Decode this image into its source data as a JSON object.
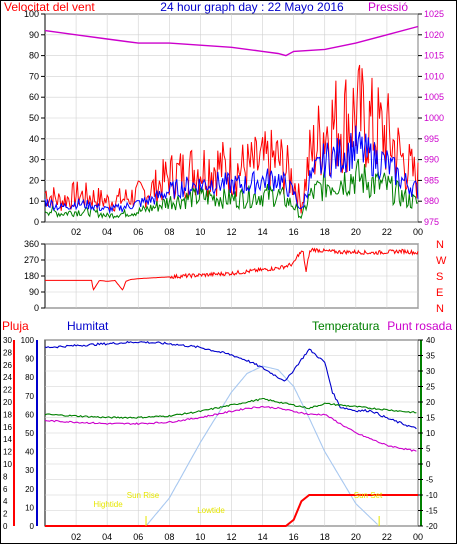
{
  "colors": {
    "wind": "#ff0000",
    "wind_avg": "#0000ff",
    "wind_low": "#008000",
    "pressure": "#cc00cc",
    "rain": "#ff0000",
    "humidity": "#0000cc",
    "temperature": "#008000",
    "dewpoint": "#cc00cc",
    "sun": "#a8c8f0",
    "sun_label": "#e6e600",
    "grid": "#d0d0d0",
    "frame": "#000000"
  },
  "chart_data": [
    {
      "type": "line",
      "title": "24 hour graph day : 22 Mayo 2016",
      "left_label": "Velocitat del vent",
      "right_label": "Pressió",
      "x_ticks": [
        "02",
        "04",
        "06",
        "08",
        "10",
        "12",
        "14",
        "16",
        "18",
        "20",
        "22",
        "00"
      ],
      "xlim": [
        0,
        24
      ],
      "y_left_ticks": [
        0,
        10,
        20,
        30,
        40,
        50,
        60,
        70,
        80,
        90,
        100
      ],
      "ylim_left": [
        0,
        100
      ],
      "y_right_ticks": [
        975,
        980,
        985,
        990,
        995,
        1000,
        1005,
        1010,
        1015,
        1020,
        1025
      ],
      "ylim_right": [
        975,
        1025
      ],
      "series": [
        {
          "axis": "right",
          "x": [
            0,
            2,
            4,
            6,
            8,
            10,
            12,
            14,
            15,
            15.5,
            16,
            18,
            20,
            22,
            24
          ],
          "values": [
            1021,
            1020,
            1019,
            1018,
            1018,
            1017.5,
            1017,
            1016,
            1015.5,
            1015,
            1016,
            1016.5,
            1018,
            1020,
            1022
          ]
        },
        {
          "axis": "left",
          "style": "gust",
          "x": [
            0,
            1,
            2,
            3,
            4,
            5,
            6,
            7,
            8,
            9,
            10,
            11,
            12,
            13,
            14,
            15,
            16,
            16.5,
            17,
            18,
            19,
            20,
            21,
            22,
            23,
            24
          ],
          "values": [
            14,
            10,
            13,
            12,
            10,
            11,
            13,
            16,
            22,
            24,
            26,
            27,
            25,
            26,
            28,
            30,
            20,
            8,
            30,
            45,
            48,
            52,
            46,
            42,
            30,
            20
          ]
        },
        {
          "axis": "left",
          "style": "average",
          "x": [
            0,
            1,
            2,
            3,
            4,
            5,
            6,
            7,
            8,
            9,
            10,
            11,
            12,
            13,
            14,
            15,
            16,
            16.5,
            17,
            18,
            19,
            20,
            21,
            22,
            23,
            24
          ],
          "values": [
            10,
            7,
            9,
            8,
            6,
            7,
            9,
            11,
            15,
            17,
            18,
            19,
            18,
            18,
            20,
            21,
            14,
            5,
            20,
            30,
            32,
            36,
            31,
            28,
            20,
            15
          ]
        },
        {
          "axis": "left",
          "style": "low",
          "x": [
            0,
            1,
            2,
            3,
            4,
            5,
            6,
            7,
            8,
            9,
            10,
            11,
            12,
            13,
            14,
            15,
            16,
            16.5,
            17,
            18,
            19,
            20,
            21,
            22,
            23,
            24
          ],
          "values": [
            6,
            4,
            5,
            5,
            3,
            4,
            5,
            7,
            10,
            11,
            12,
            12,
            11,
            12,
            13,
            13,
            8,
            2,
            12,
            18,
            20,
            22,
            19,
            17,
            12,
            9
          ]
        }
      ]
    },
    {
      "type": "line",
      "x_ticks": [
        "02",
        "04",
        "06",
        "08",
        "10",
        "12",
        "14",
        "16",
        "18",
        "20",
        "22",
        "00"
      ],
      "xlim": [
        0,
        24
      ],
      "y_left_ticks": [
        0,
        90,
        180,
        270,
        360
      ],
      "ylim_left": [
        0,
        360
      ],
      "direction_labels": [
        "N",
        "W",
        "S",
        "E",
        "N"
      ],
      "series": [
        {
          "x": [
            0,
            3,
            3.1,
            3.5,
            4,
            4.5,
            5,
            5.2,
            5.5,
            6,
            7,
            8,
            9,
            10,
            11,
            12,
            13,
            14,
            15,
            15.5,
            16,
            16.3,
            16.6,
            16.8,
            17,
            17.2,
            18,
            19,
            20,
            21,
            22,
            23,
            24
          ],
          "values": [
            155,
            155,
            100,
            155,
            150,
            155,
            100,
            150,
            160,
            165,
            170,
            175,
            180,
            185,
            190,
            195,
            205,
            215,
            225,
            235,
            250,
            300,
            320,
            200,
            310,
            330,
            320,
            315,
            315,
            310,
            315,
            320,
            310
          ]
        }
      ]
    },
    {
      "type": "line",
      "labels": {
        "rain": "Pluja",
        "humidity": "Humitat",
        "temperature": "Temperatura",
        "dewpoint": "Punt rosada"
      },
      "x_ticks": [
        "02",
        "04",
        "06",
        "08",
        "10",
        "12",
        "14",
        "16",
        "18",
        "20",
        "22",
        "00"
      ],
      "xlim": [
        0,
        24
      ],
      "rain_ticks": [
        0,
        2,
        4,
        6,
        8,
        10,
        12,
        14,
        16,
        18,
        20,
        22,
        24,
        26,
        28,
        30
      ],
      "ylim_rain": [
        0,
        30
      ],
      "humidity_ticks": [
        0,
        10,
        20,
        30,
        40,
        50,
        60,
        70,
        80,
        90,
        100
      ],
      "ylim_humidity": [
        0,
        100
      ],
      "temperature_ticks": [
        -20,
        -15,
        -10,
        -5,
        0,
        5,
        10,
        15,
        20,
        25,
        30,
        35,
        40
      ],
      "ylim_temperature": [
        -20,
        40
      ],
      "sun_labels": {
        "sunrise": "Sun Rise",
        "sunset": "Sun Set",
        "lowtide": "Lowtide",
        "hightide": "Hightide"
      },
      "series": [
        {
          "name": "Humitat",
          "axis": "humidity",
          "x": [
            0,
            2,
            4,
            6,
            8,
            10,
            12,
            13,
            14,
            15,
            15.5,
            16,
            17,
            18,
            18.5,
            19,
            20,
            21,
            22,
            23,
            24
          ],
          "values": [
            96,
            97,
            98,
            99,
            98,
            96,
            92,
            89,
            85,
            80,
            78,
            84,
            95,
            88,
            72,
            64,
            62,
            62,
            58,
            55,
            52
          ]
        },
        {
          "name": "Temperatura",
          "axis": "temperature",
          "x": [
            0,
            2,
            4,
            6,
            8,
            10,
            12,
            13,
            14,
            15,
            16,
            17,
            18,
            19,
            20,
            21,
            22,
            23,
            24
          ],
          "values": [
            16,
            15.5,
            15,
            15,
            15.5,
            17,
            19,
            20,
            21,
            20,
            19,
            18,
            19.5,
            19,
            18.5,
            18,
            17.5,
            17,
            16.5
          ]
        },
        {
          "name": "Punt rosada",
          "axis": "temperature",
          "x": [
            0,
            2,
            4,
            6,
            8,
            10,
            12,
            13,
            14,
            15,
            16,
            17,
            18,
            19,
            20,
            21,
            22,
            23,
            24
          ],
          "values": [
            14,
            13.5,
            13,
            13,
            13.5,
            15,
            17,
            18,
            18.5,
            18,
            17,
            16,
            16,
            13,
            10,
            8,
            6,
            5,
            4
          ]
        },
        {
          "name": "Pluja",
          "axis": "rain",
          "x": [
            0,
            15.5,
            16,
            16.5,
            17,
            18,
            19,
            20,
            21,
            22,
            23,
            24
          ],
          "values": [
            0,
            0,
            1,
            4,
            5,
            5,
            5,
            5,
            5,
            5,
            5,
            5
          ]
        },
        {
          "name": "sun",
          "axis": "humidity",
          "x": [
            6.5,
            8,
            10,
            12,
            13,
            14,
            15,
            16,
            17,
            18,
            20,
            21.5
          ],
          "values": [
            0,
            15,
            45,
            72,
            82,
            86,
            84,
            75,
            58,
            40,
            12,
            0
          ]
        }
      ]
    }
  ]
}
